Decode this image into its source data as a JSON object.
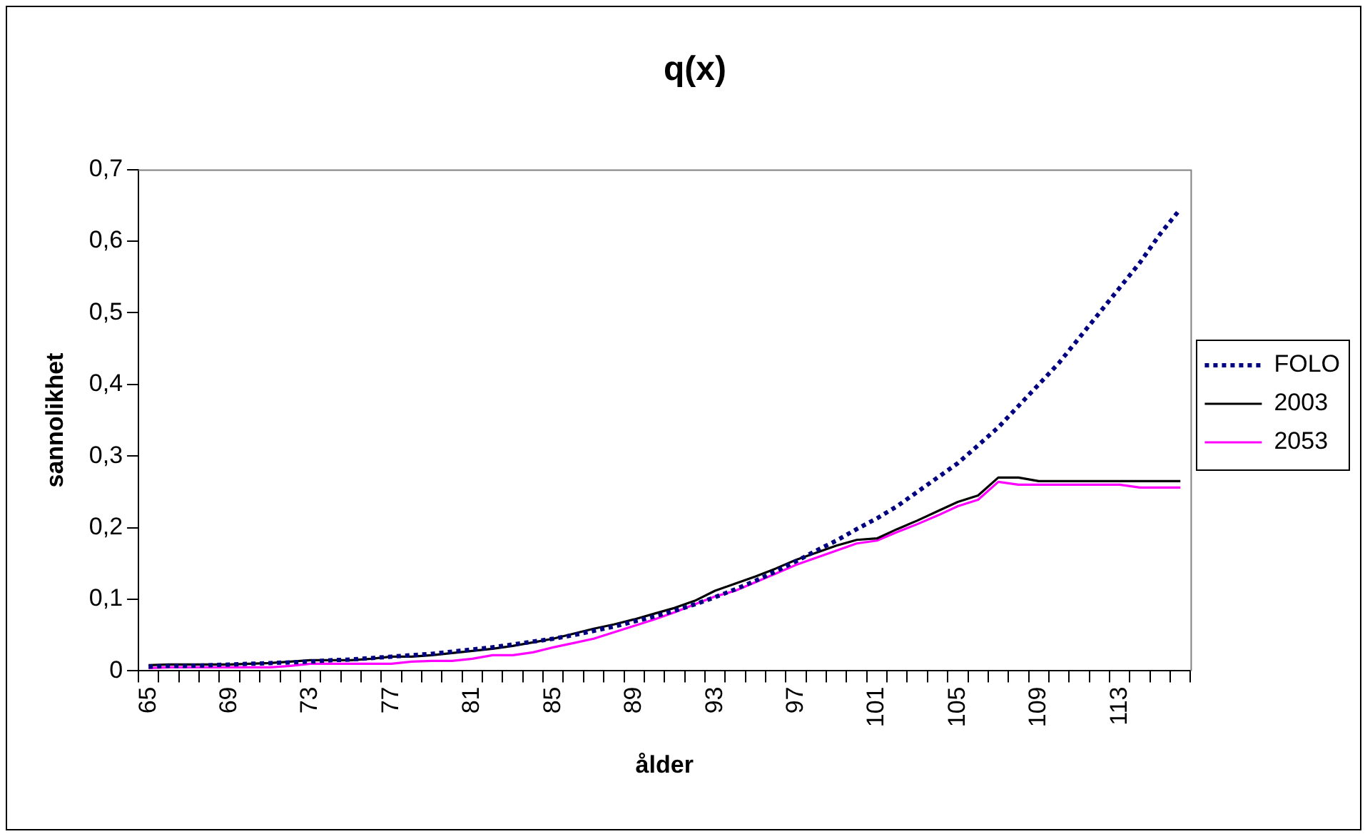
{
  "chart_data": {
    "type": "line",
    "title": "q(x)",
    "xlabel": "ålder",
    "ylabel": "sannolikhet",
    "categories": [
      "65",
      null,
      null,
      null,
      "69",
      null,
      null,
      null,
      "73",
      null,
      null,
      null,
      "77",
      null,
      null,
      null,
      "81",
      null,
      null,
      null,
      "85",
      null,
      null,
      null,
      "89",
      null,
      null,
      null,
      "93",
      null,
      null,
      null,
      "97",
      null,
      null,
      null,
      "101",
      null,
      null,
      null,
      "105",
      null,
      null,
      null,
      "109",
      null,
      null,
      null,
      "113",
      null,
      null,
      null
    ],
    "ylim": [
      0,
      0.7
    ],
    "yticks": [
      {
        "value": 0,
        "label": "0"
      },
      {
        "value": 0.1,
        "label": "0,1"
      },
      {
        "value": 0.2,
        "label": "0,2"
      },
      {
        "value": 0.3,
        "label": "0,3"
      },
      {
        "value": 0.4,
        "label": "0,4"
      },
      {
        "value": 0.5,
        "label": "0,5"
      },
      {
        "value": 0.6,
        "label": "0,6"
      },
      {
        "value": 0.7,
        "label": "0,7"
      }
    ],
    "grid": false,
    "legend": "right",
    "marker": "none",
    "series": [
      {
        "name": "FOLO",
        "color": "#000080",
        "line_style": "dotted",
        "values": [
          0.006,
          0.007,
          0.007,
          0.008,
          0.009,
          0.01,
          0.011,
          0.012,
          0.013,
          0.015,
          0.016,
          0.018,
          0.02,
          0.022,
          0.024,
          0.027,
          0.03,
          0.033,
          0.037,
          0.041,
          0.045,
          0.05,
          0.056,
          0.062,
          0.069,
          0.076,
          0.084,
          0.093,
          0.103,
          0.114,
          0.126,
          0.139,
          0.153,
          0.168,
          0.182,
          0.198,
          0.213,
          0.23,
          0.25,
          0.27,
          0.29,
          0.315,
          0.34,
          0.37,
          0.4,
          0.43,
          0.465,
          0.5,
          0.535,
          0.57,
          0.61,
          0.645
        ]
      },
      {
        "name": "2003",
        "color": "#000000",
        "line_style": "solid",
        "values": [
          0.008,
          0.009,
          0.009,
          0.009,
          0.009,
          0.01,
          0.011,
          0.013,
          0.015,
          0.015,
          0.015,
          0.017,
          0.02,
          0.02,
          0.022,
          0.025,
          0.028,
          0.031,
          0.035,
          0.04,
          0.045,
          0.052,
          0.059,
          0.065,
          0.072,
          0.08,
          0.088,
          0.098,
          0.112,
          0.122,
          0.132,
          0.143,
          0.155,
          0.165,
          0.175,
          0.183,
          0.185,
          0.198,
          0.21,
          0.223,
          0.236,
          0.245,
          0.27,
          0.27,
          0.265,
          0.265,
          0.265,
          0.265,
          0.265,
          0.265,
          0.265,
          0.265
        ]
      },
      {
        "name": "2053",
        "color": "#ff00ff",
        "line_style": "solid",
        "values": [
          0.004,
          0.005,
          0.005,
          0.005,
          0.005,
          0.005,
          0.005,
          0.007,
          0.01,
          0.01,
          0.01,
          0.01,
          0.01,
          0.013,
          0.014,
          0.014,
          0.017,
          0.022,
          0.022,
          0.026,
          0.033,
          0.039,
          0.045,
          0.054,
          0.063,
          0.072,
          0.082,
          0.093,
          0.104,
          0.112,
          0.124,
          0.136,
          0.148,
          0.158,
          0.168,
          0.178,
          0.182,
          0.194,
          0.205,
          0.217,
          0.23,
          0.239,
          0.264,
          0.26,
          0.26,
          0.26,
          0.26,
          0.26,
          0.26,
          0.256,
          0.256,
          0.256
        ]
      }
    ]
  }
}
